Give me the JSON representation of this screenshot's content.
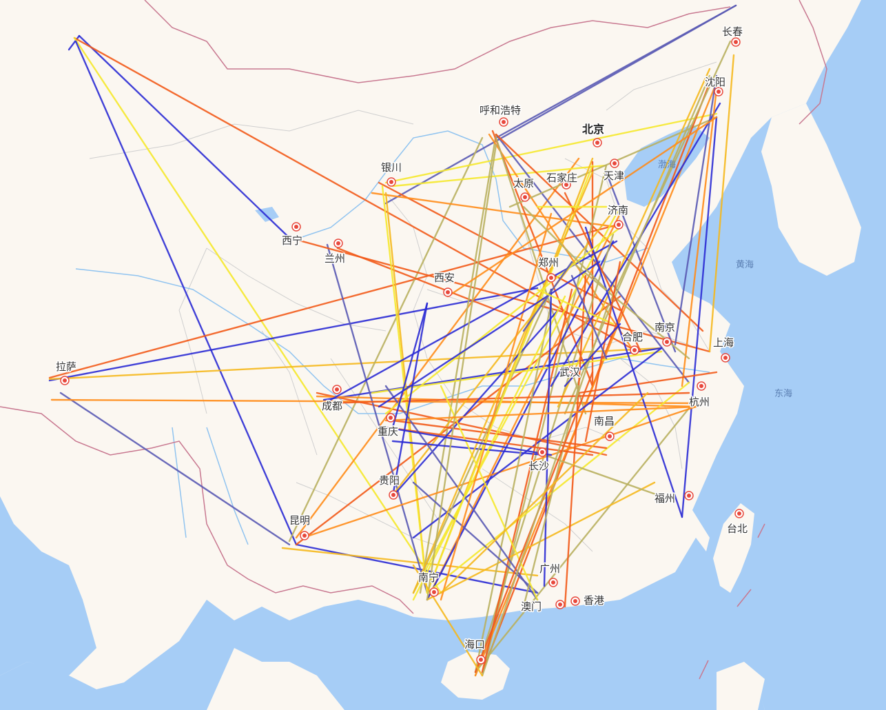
{
  "map": {
    "colors": {
      "land": "#fbf7f1",
      "sea": "#a6cdf6",
      "province_border": "#c9c9c9",
      "national_border": "#c87890",
      "river": "#8fc3f0",
      "city_marker": "#e8483c",
      "flight_line_palette": [
        "#2b2bd4",
        "#5a5ab4",
        "#f25a1a",
        "#ff8c1a",
        "#f5b81e",
        "#f5e82c",
        "#8a8a6e",
        "#b9b060"
      ]
    },
    "sea_labels": [
      "黄海",
      "东海",
      "渤海"
    ],
    "cities": [
      {
        "name": "北京",
        "capital": true,
        "icon": "city-marker-icon"
      },
      {
        "name": "天津"
      },
      {
        "name": "石家庄"
      },
      {
        "name": "太原"
      },
      {
        "name": "呼和浩特"
      },
      {
        "name": "银川"
      },
      {
        "name": "兰州"
      },
      {
        "name": "西宁"
      },
      {
        "name": "西安"
      },
      {
        "name": "济南"
      },
      {
        "name": "郑州"
      },
      {
        "name": "合肥"
      },
      {
        "name": "南京"
      },
      {
        "name": "上海"
      },
      {
        "name": "杭州"
      },
      {
        "name": "武汉"
      },
      {
        "name": "南昌"
      },
      {
        "name": "长沙"
      },
      {
        "name": "福州"
      },
      {
        "name": "台北"
      },
      {
        "name": "成都"
      },
      {
        "name": "重庆"
      },
      {
        "name": "贵阳"
      },
      {
        "name": "昆明"
      },
      {
        "name": "南宁"
      },
      {
        "name": "广州"
      },
      {
        "name": "澳门"
      },
      {
        "name": "香港"
      },
      {
        "name": "海口"
      },
      {
        "name": "拉萨"
      },
      {
        "name": "沈阳"
      },
      {
        "name": "长春"
      }
    ]
  }
}
